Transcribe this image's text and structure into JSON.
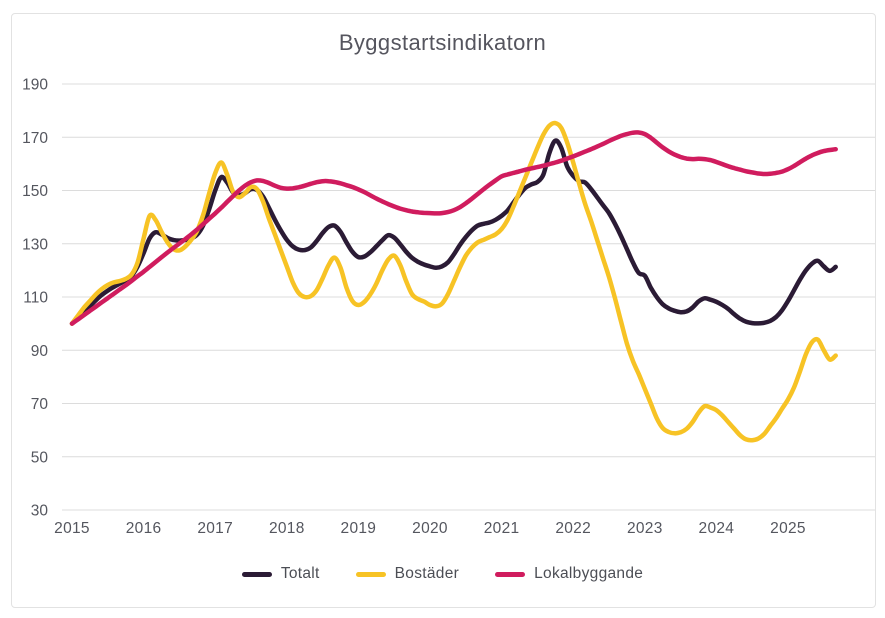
{
  "title": "Byggstartsindikatorn",
  "colors": {
    "totalt": "#2b1b35",
    "bostader": "#f7c325",
    "lokalbyggande": "#d01c5e",
    "grid": "#dcdcdc",
    "axis_text": "#54565e",
    "title_text": "#55555e"
  },
  "chart_data": {
    "type": "line",
    "title": "Byggstartsindikatorn",
    "frequency": "monthly",
    "x_start": "2015-01",
    "x_end": "2025-09",
    "x_tick_labels": [
      "2015",
      "2016",
      "2017",
      "2018",
      "2019",
      "2020",
      "2021",
      "2022",
      "2023",
      "2024",
      "2025"
    ],
    "y_ticks": [
      30,
      50,
      70,
      90,
      110,
      130,
      150,
      170,
      190
    ],
    "ylim": [
      30,
      190
    ],
    "grid": "horizontal",
    "legend_position": "bottom",
    "series": [
      {
        "name": "Totalt",
        "color": "#2b1b35",
        "values": [
          100,
          102,
          104.3,
          106.6,
          108.8,
          110.8,
          112.4,
          113.8,
          115,
          116.3,
          118,
          121.5,
          126.5,
          132,
          134.3,
          133.5,
          132.2,
          131.4,
          131.2,
          131.4,
          132,
          133.5,
          137,
          143,
          150,
          155,
          153,
          149.3,
          148.2,
          149,
          150.5,
          150.2,
          147.8,
          143.5,
          139,
          135,
          131.5,
          129,
          127.8,
          127.6,
          128.6,
          131,
          134,
          136.3,
          136.8,
          134.5,
          130.5,
          127,
          125,
          125.2,
          126.8,
          129,
          131.3,
          133.2,
          132.3,
          129.8,
          127,
          124.7,
          123.2,
          122.2,
          121.5,
          121,
          121.5,
          123,
          126,
          129.5,
          132.5,
          135,
          136.8,
          137.5,
          138,
          139,
          140.5,
          142.5,
          145.5,
          148.5,
          151,
          152.3,
          153.2,
          156,
          164,
          168.7,
          166,
          159,
          155.5,
          153.5,
          153,
          150.5,
          147.5,
          144.5,
          141.5,
          137.5,
          133,
          128,
          123,
          119,
          118,
          113.5,
          110,
          107.3,
          105.7,
          104.8,
          104.3,
          104.6,
          106,
          108.3,
          109.5,
          109,
          108.2,
          107,
          105.5,
          103.5,
          101.8,
          100.7,
          100.2,
          100.1,
          100.3,
          101,
          102.5,
          105,
          108.5,
          112.5,
          116.5,
          120,
          122.5,
          123.6,
          121.5,
          119.8,
          121.3
        ]
      },
      {
        "name": "Bostäder",
        "color": "#f7c325",
        "values": [
          100,
          103,
          106,
          108.5,
          111,
          113,
          114.5,
          115.5,
          116,
          116.8,
          118.5,
          123,
          132,
          140.5,
          139,
          134.5,
          130.5,
          128,
          127.5,
          129,
          131.5,
          135,
          141,
          149,
          156.5,
          160.5,
          156,
          149.5,
          147.5,
          149,
          151.3,
          150.5,
          146,
          139.5,
          133.5,
          127.5,
          121.5,
          115.5,
          111.5,
          110,
          110.3,
          112.5,
          117,
          122,
          124.8,
          121,
          113.5,
          108.5,
          107,
          108.2,
          111,
          115,
          120,
          124,
          125.5,
          122,
          116,
          111,
          109.2,
          108.3,
          107,
          106.5,
          107.5,
          111,
          116,
          121,
          125.5,
          128.5,
          130.5,
          131.5,
          132.5,
          133.5,
          135.5,
          139,
          144,
          149.5,
          155,
          160.5,
          166,
          171,
          174.3,
          175.3,
          173.5,
          168,
          160.5,
          152.5,
          145,
          138.5,
          131.5,
          124.5,
          117.5,
          109.5,
          101,
          92.5,
          86,
          81,
          75.5,
          70,
          64.5,
          60.8,
          59.3,
          58.8,
          59.2,
          60.5,
          63,
          66.5,
          69,
          68.5,
          67.5,
          65.5,
          63,
          60.5,
          58,
          56.5,
          56.2,
          56.8,
          58.5,
          61.5,
          64.5,
          68,
          71.5,
          76,
          82,
          88.5,
          93,
          94,
          90,
          86.5,
          88
        ]
      },
      {
        "name": "Lokalbyggande",
        "color": "#d01c5e",
        "values": [
          100,
          101.6,
          103.2,
          104.8,
          106.4,
          108,
          109.6,
          111.2,
          112.8,
          114.4,
          116.1,
          117.8,
          119.5,
          121.3,
          123.1,
          124.9,
          126.7,
          128.4,
          130.1,
          131.8,
          133.5,
          135.4,
          137.4,
          139.4,
          141.4,
          143.5,
          145.7,
          147.9,
          150,
          151.8,
          153.1,
          153.8,
          153.6,
          152.8,
          151.8,
          151,
          150.7,
          150.8,
          151.2,
          151.8,
          152.5,
          153.1,
          153.5,
          153.5,
          153.2,
          152.7,
          152,
          151.3,
          150.4,
          149.4,
          148.2,
          147,
          145.9,
          144.9,
          144,
          143.2,
          142.6,
          142.1,
          141.8,
          141.6,
          141.5,
          141.4,
          141.5,
          141.9,
          142.6,
          143.7,
          145.2,
          146.9,
          148.7,
          150.5,
          152.2,
          153.8,
          155.3,
          156,
          156.6,
          157.2,
          157.8,
          158.3,
          158.8,
          159.3,
          159.9,
          160.5,
          161.2,
          162,
          162.8,
          163.7,
          164.6,
          165.5,
          166.5,
          167.5,
          168.6,
          169.6,
          170.5,
          171.2,
          171.7,
          171.8,
          171.2,
          169.8,
          168,
          166.2,
          164.7,
          163.5,
          162.6,
          162,
          161.8,
          161.9,
          161.8,
          161.4,
          160.7,
          159.9,
          159.1,
          158.4,
          157.8,
          157.2,
          156.8,
          156.4,
          156.2,
          156.3,
          156.6,
          157.1,
          158,
          159.2,
          160.6,
          162,
          163.2,
          164.1,
          164.8,
          165.2,
          165.5
        ]
      }
    ]
  }
}
